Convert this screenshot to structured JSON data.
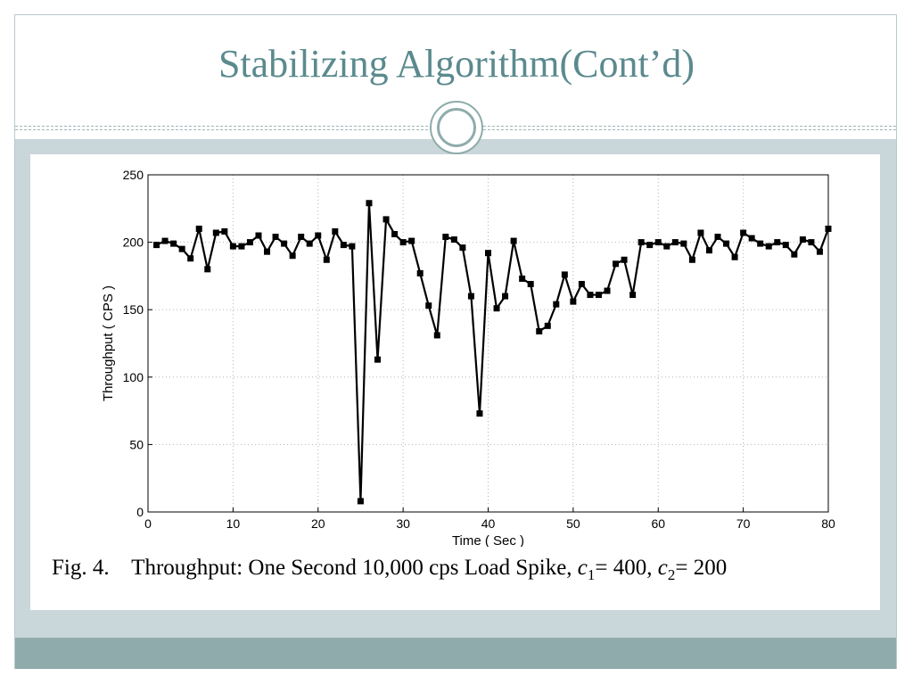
{
  "slide": {
    "title": "Stabilizing Algorithm(Cont’d)"
  },
  "theme": {
    "title_color": "#5b8a8e",
    "band_color": "#c9d6da",
    "footer_color": "#8fabab"
  },
  "caption": {
    "fig_label": "Fig. 4.",
    "text": "Throughput: One Second 10,000 cps Load Spike,",
    "c1_var": "c",
    "c1_sub": "1",
    "c1_value": "= 400,",
    "c2_var": "c",
    "c2_sub": "2",
    "c2_value": "= 200"
  },
  "chart_data": {
    "type": "line",
    "xlabel": "Time ( Sec )",
    "ylabel": "Throughput ( CPS )",
    "xlim": [
      0,
      80
    ],
    "ylim": [
      0,
      250
    ],
    "xticks": [
      0,
      10,
      20,
      30,
      40,
      50,
      60,
      70,
      80
    ],
    "yticks": [
      0,
      50,
      100,
      150,
      200,
      250
    ],
    "grid": true,
    "marker": "square",
    "line_color": "#000000",
    "series": [
      {
        "x": [
          1,
          2,
          3,
          4,
          5,
          6,
          7,
          8,
          9,
          10,
          11,
          12,
          13,
          14,
          15,
          16,
          17,
          18,
          19,
          20,
          21,
          22,
          23,
          24,
          25,
          26,
          27,
          28,
          29,
          30,
          31,
          32,
          33,
          34,
          35,
          36,
          37,
          38,
          39,
          40,
          41,
          42,
          43,
          44,
          45,
          46,
          47,
          48,
          49,
          50,
          51,
          52,
          53,
          54,
          55,
          56,
          57,
          58,
          59,
          60,
          61,
          62,
          63,
          64,
          65,
          66,
          67,
          68,
          69,
          70,
          71,
          72,
          73,
          74,
          75,
          76,
          77,
          78,
          79,
          80
        ],
        "y": [
          198,
          201,
          199,
          195,
          188,
          210,
          180,
          207,
          208,
          197,
          197,
          200,
          205,
          193,
          204,
          199,
          190,
          204,
          199,
          205,
          187,
          208,
          198,
          197,
          8,
          229,
          113,
          217,
          206,
          200,
          201,
          177,
          153,
          131,
          204,
          202,
          196,
          160,
          73,
          192,
          151,
          160,
          201,
          173,
          169,
          134,
          138,
          154,
          176,
          156,
          169,
          161,
          161,
          164,
          184,
          187,
          161,
          200,
          198,
          200,
          197,
          200,
          199,
          187,
          207,
          194,
          204,
          199,
          189,
          207,
          203,
          199,
          197,
          200,
          198,
          191,
          202,
          200,
          193,
          210
        ]
      }
    ]
  }
}
